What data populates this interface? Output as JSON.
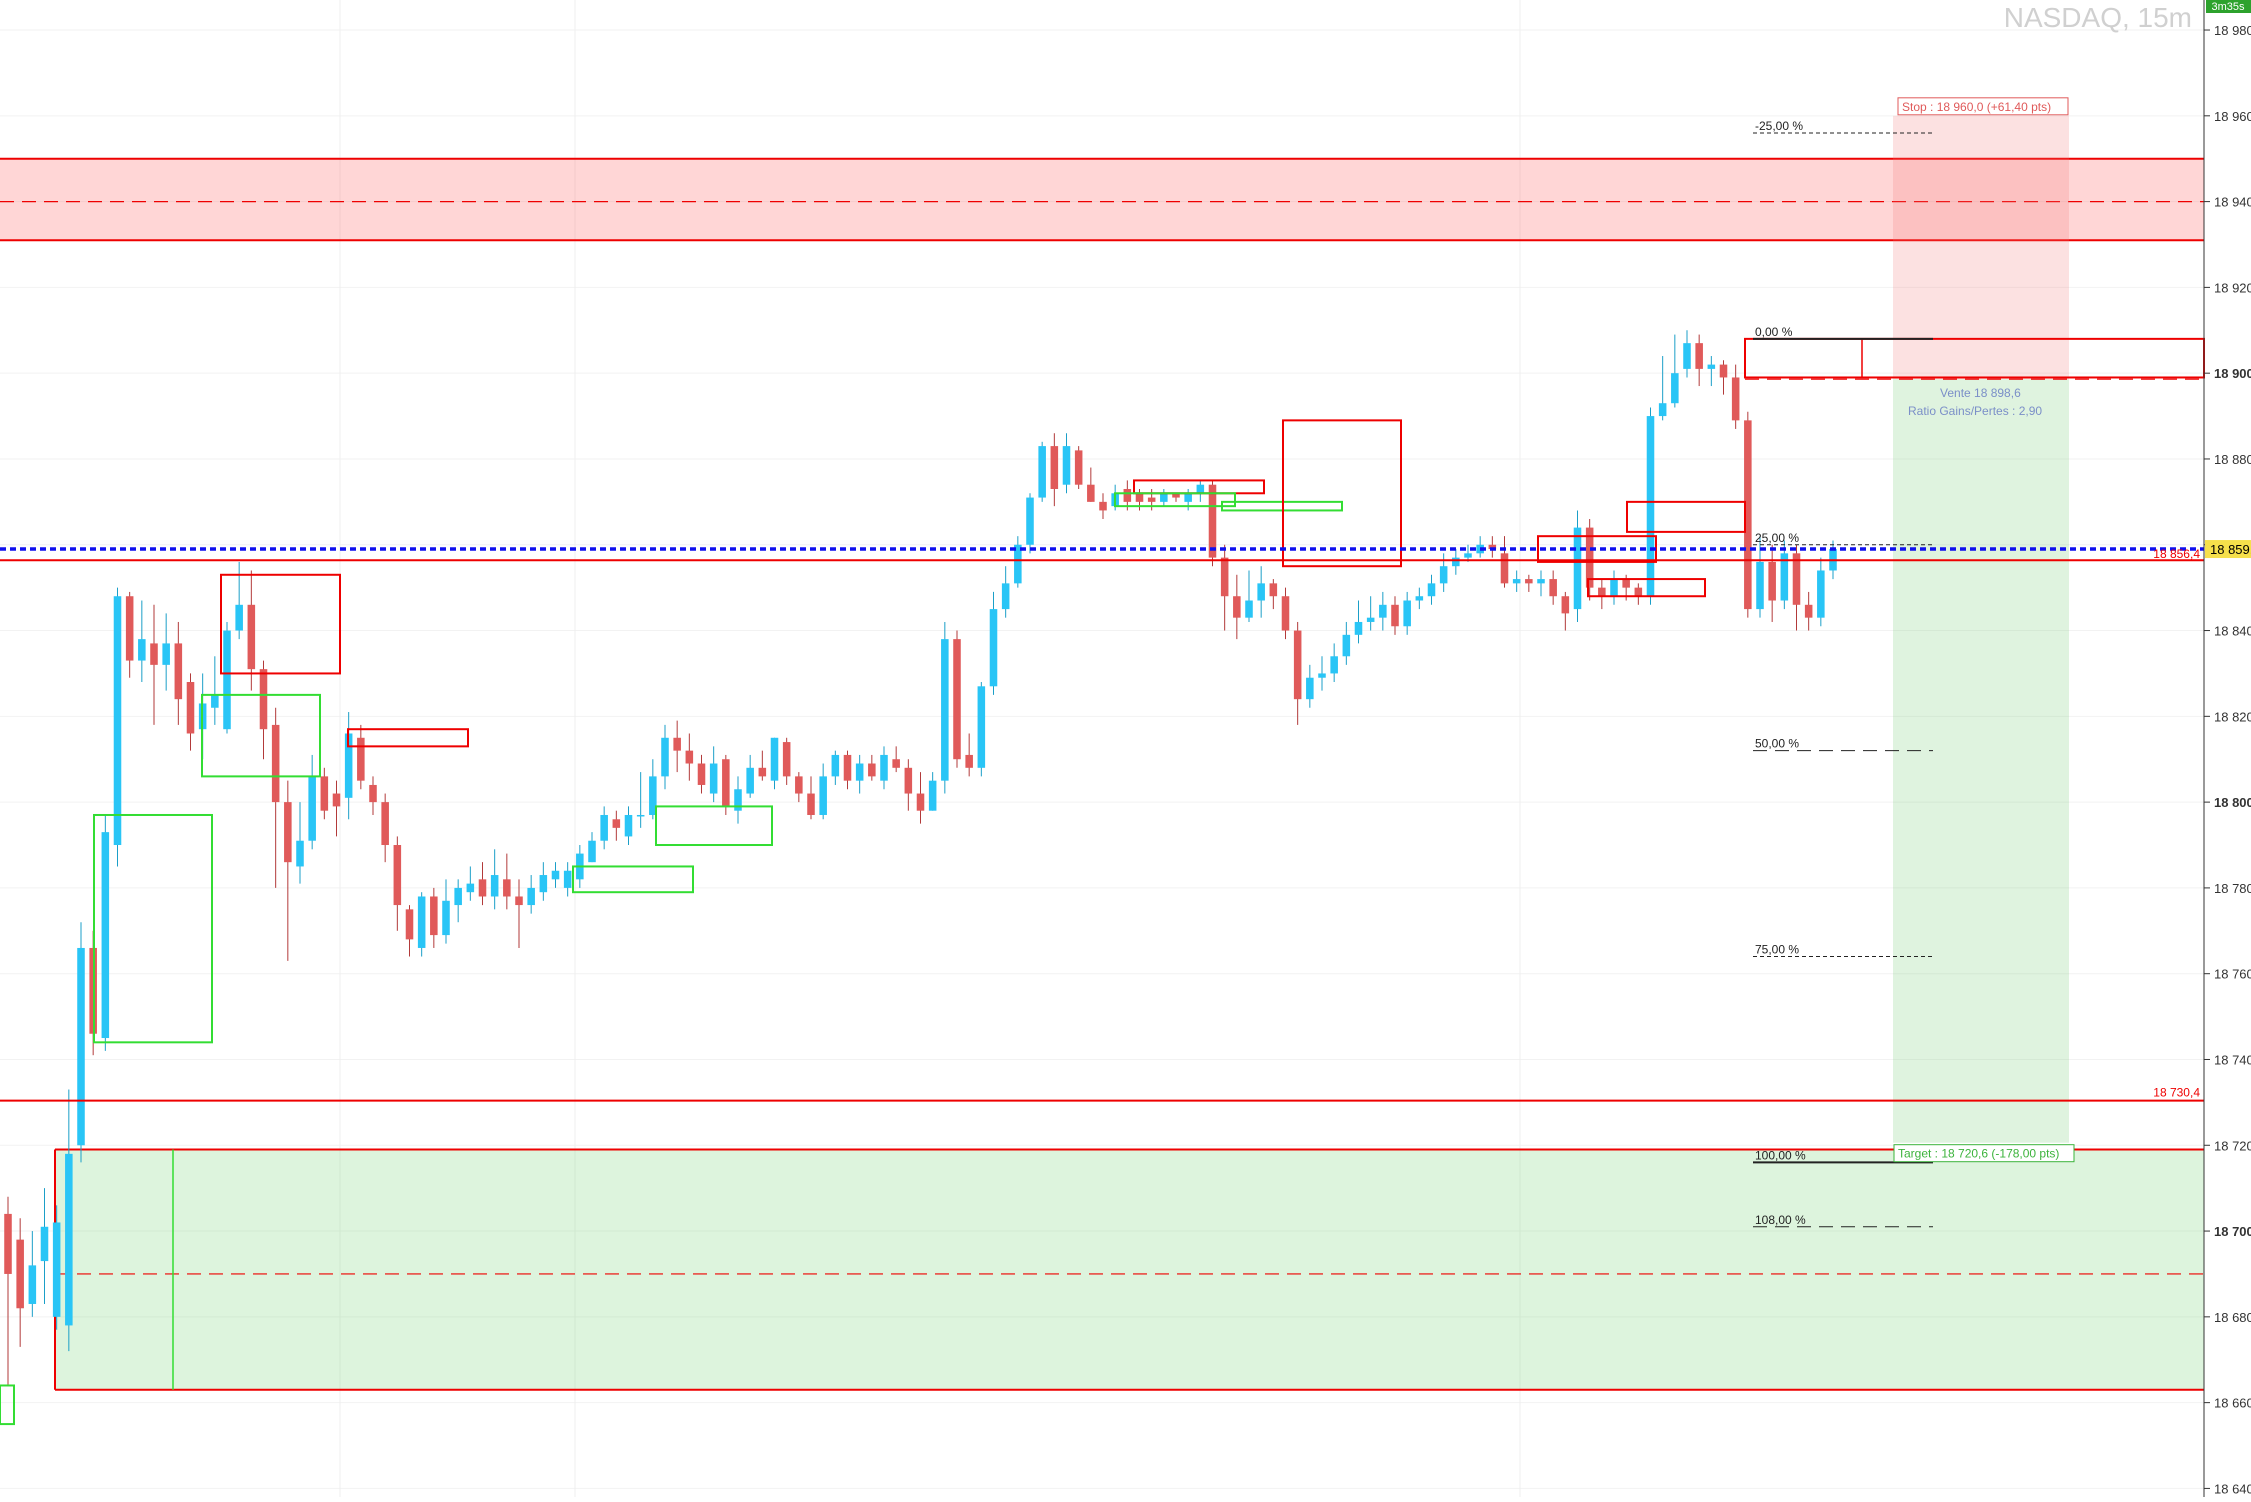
{
  "header": {
    "title": "NASDAQ, 15m",
    "timer": "3m35s"
  },
  "colors": {
    "bull": "#29c5f6",
    "bear": "#e05a5a",
    "red_zone": "#ff0000",
    "green_zone": "#33dd33",
    "price_line": "#1010ee",
    "current_price_bg": "#f6e04b",
    "timer_bg": "#2da22d"
  },
  "chart_data": {
    "type": "candlestick",
    "title": "NASDAQ, 15m",
    "ylim": [
      18638,
      18987
    ],
    "y_ticks": [
      {
        "value": 18980,
        "label": "18 980",
        "bold": false
      },
      {
        "value": 18960,
        "label": "18 960",
        "bold": false
      },
      {
        "value": 18940,
        "label": "18 940",
        "bold": false
      },
      {
        "value": 18920,
        "label": "18 920",
        "bold": false
      },
      {
        "value": 18900,
        "label": "18 900",
        "bold": true
      },
      {
        "value": 18880,
        "label": "18 880",
        "bold": false
      },
      {
        "value": 18860,
        "label": "18 860",
        "bold": false
      },
      {
        "value": 18840,
        "label": "18 840",
        "bold": false
      },
      {
        "value": 18820,
        "label": "18 820",
        "bold": false
      },
      {
        "value": 18800,
        "label": "18 800",
        "bold": true
      },
      {
        "value": 18780,
        "label": "18 780",
        "bold": false
      },
      {
        "value": 18760,
        "label": "18 760",
        "bold": false
      },
      {
        "value": 18740,
        "label": "18 740",
        "bold": false
      },
      {
        "value": 18720,
        "label": "18 720",
        "bold": false
      },
      {
        "value": 18700,
        "label": "18 700",
        "bold": true
      },
      {
        "value": 18680,
        "label": "18 680",
        "bold": false
      },
      {
        "value": 18660,
        "label": "18 660",
        "bold": false
      },
      {
        "value": 18640,
        "label": "18 640",
        "bold": false
      }
    ],
    "current_price": {
      "value": 18859,
      "label": "18 859,"
    },
    "price_labels": [
      {
        "value": 18856.4,
        "label": "18 856,4"
      },
      {
        "value": 18730.4,
        "label": "18 730,4"
      }
    ],
    "zones": [
      {
        "kind": "supply",
        "from": 18931,
        "to": 18950,
        "mid": 18940
      },
      {
        "kind": "demand",
        "from": 18663,
        "to": 18719,
        "mid": 18690
      }
    ],
    "lines": [
      {
        "value": 18856.4,
        "color": "red"
      },
      {
        "value": 18730.4,
        "color": "red"
      }
    ],
    "fibonacci": [
      {
        "value": 18956,
        "label": "-25,00 %"
      },
      {
        "value": 18908,
        "label": "0,00 %"
      },
      {
        "value": 18860,
        "label": "25,00 %"
      },
      {
        "value": 18812,
        "label": "50,00 %"
      },
      {
        "value": 18764,
        "label": "75,00 %"
      },
      {
        "value": 18716,
        "label": "100,00 %"
      },
      {
        "value": 18701,
        "label": "108,00 %"
      }
    ],
    "position": {
      "entry": 18898.6,
      "stop": 18960.0,
      "target": 18720.6,
      "entry_label": "Vente 18 898,6",
      "ratio_label": "Ratio Gains/Pertes : 2,90",
      "stop_label": "Stop : 18 960,0 (+61,40 pts)",
      "target_label": "Target : 18 720,6 (-178,00 pts)"
    },
    "candles": [
      [
        18704,
        18690,
        18708,
        18664
      ],
      [
        18698,
        18682,
        18703,
        18673
      ],
      [
        18683,
        18692,
        18700,
        18680
      ],
      [
        18693,
        18701,
        18710,
        18683
      ],
      [
        18680,
        18702,
        18706,
        18677
      ],
      [
        18678,
        18718,
        18733,
        18672
      ],
      [
        18720,
        18766,
        18772,
        18716
      ],
      [
        18766,
        18746,
        18770,
        18741
      ],
      [
        18745,
        18793,
        18797,
        18742
      ],
      [
        18790,
        18848,
        18850,
        18785
      ],
      [
        18848,
        18833,
        18849,
        18829
      ],
      [
        18833,
        18838,
        18847,
        18828
      ],
      [
        18837,
        18832,
        18846,
        18818
      ],
      [
        18832,
        18837,
        18844,
        18826
      ],
      [
        18837,
        18824,
        18842,
        18818
      ],
      [
        18828,
        18816,
        18830,
        18812
      ],
      [
        18817,
        18823,
        18830,
        18810
      ],
      [
        18822,
        18825,
        18834,
        18818
      ],
      [
        18817,
        18840,
        18842,
        18816
      ],
      [
        18840,
        18846,
        18856,
        18838
      ],
      [
        18846,
        18831,
        18854,
        18826
      ],
      [
        18831,
        18817,
        18833,
        18810
      ],
      [
        18818,
        18800,
        18822,
        18780
      ],
      [
        18800,
        18786,
        18805,
        18763
      ],
      [
        18785,
        18791,
        18800,
        18781
      ],
      [
        18791,
        18806,
        18811,
        18789
      ],
      [
        18806,
        18798,
        18808,
        18796
      ],
      [
        18802,
        18799,
        18805,
        18792
      ],
      [
        18801,
        18816,
        18821,
        18796
      ],
      [
        18815,
        18805,
        18818,
        18803
      ],
      [
        18804,
        18800,
        18806,
        18797
      ],
      [
        18800,
        18790,
        18802,
        18786
      ],
      [
        18790,
        18776,
        18792,
        18770
      ],
      [
        18775,
        18768,
        18776,
        18764
      ],
      [
        18766,
        18778,
        18779,
        18764
      ],
      [
        18778,
        18769,
        18780,
        18766
      ],
      [
        18769,
        18777,
        18782,
        18767
      ],
      [
        18776,
        18780,
        18782,
        18772
      ],
      [
        18779,
        18781,
        18785,
        18777
      ],
      [
        18782,
        18778,
        18786,
        18776
      ],
      [
        18778,
        18783,
        18789,
        18775
      ],
      [
        18782,
        18778,
        18788,
        18775
      ],
      [
        18778,
        18776,
        18782,
        18766
      ],
      [
        18776,
        18780,
        18783,
        18774
      ],
      [
        18779,
        18783,
        18786,
        18777
      ],
      [
        18782,
        18784,
        18786,
        18780
      ],
      [
        18780,
        18784,
        18786,
        18778
      ],
      [
        18782,
        18788,
        18790,
        18780
      ],
      [
        18786,
        18791,
        18793,
        18786
      ],
      [
        18791,
        18797,
        18799,
        18789
      ],
      [
        18796,
        18794,
        18798,
        18791
      ],
      [
        18792,
        18797,
        18799,
        18790
      ],
      [
        18797,
        18797,
        18807,
        18794
      ],
      [
        18797,
        18806,
        18810,
        18796
      ],
      [
        18806,
        18815,
        18818,
        18803
      ],
      [
        18815,
        18812,
        18819,
        18807
      ],
      [
        18812,
        18809,
        18816,
        18805
      ],
      [
        18809,
        18804,
        18811,
        18802
      ],
      [
        18802,
        18809,
        18813,
        18800
      ],
      [
        18810,
        18799,
        18811,
        18797
      ],
      [
        18798,
        18803,
        18806,
        18795
      ],
      [
        18802,
        18808,
        18811,
        18801
      ],
      [
        18808,
        18806,
        18812,
        18805
      ],
      [
        18805,
        18815,
        18815,
        18803
      ],
      [
        18814,
        18806,
        18815,
        18804
      ],
      [
        18806,
        18802,
        18807,
        18800
      ],
      [
        18802,
        18797,
        18806,
        18796
      ],
      [
        18797,
        18806,
        18809,
        18796
      ],
      [
        18806,
        18811,
        18812,
        18804
      ],
      [
        18811,
        18805,
        18812,
        18803
      ],
      [
        18805,
        18809,
        18811,
        18802
      ],
      [
        18809,
        18806,
        18811,
        18805
      ],
      [
        18805,
        18811,
        18813,
        18803
      ],
      [
        18810,
        18808,
        18813,
        18807
      ],
      [
        18808,
        18802,
        18810,
        18798
      ],
      [
        18802,
        18798,
        18807,
        18795
      ],
      [
        18798,
        18805,
        18807,
        18798
      ],
      [
        18805,
        18838,
        18842,
        18802
      ],
      [
        18838,
        18810,
        18840,
        18808
      ],
      [
        18811,
        18808,
        18816,
        18806
      ],
      [
        18808,
        18827,
        18828,
        18806
      ],
      [
        18827,
        18845,
        18849,
        18825
      ],
      [
        18845,
        18851,
        18855,
        18843
      ],
      [
        18851,
        18860,
        18862,
        18850
      ],
      [
        18860,
        18871,
        18872,
        18858
      ],
      [
        18871,
        18883,
        18884,
        18870
      ],
      [
        18883,
        18873,
        18886,
        18869
      ],
      [
        18874,
        18883,
        18886,
        18872
      ],
      [
        18882,
        18874,
        18883,
        18873
      ],
      [
        18874,
        18870,
        18878,
        18870
      ],
      [
        18870,
        18868,
        18872,
        18866
      ],
      [
        18869,
        18872,
        18874,
        18868
      ],
      [
        18873,
        18870,
        18875,
        18868
      ],
      [
        18872,
        18870,
        18873,
        18868
      ],
      [
        18871,
        18870,
        18873,
        18868
      ],
      [
        18870,
        18872,
        18873,
        18869
      ],
      [
        18872,
        18871,
        18872,
        18870
      ],
      [
        18870,
        18872,
        18873,
        18868
      ],
      [
        18872,
        18874,
        18875,
        18870
      ],
      [
        18874,
        18857,
        18875,
        18855
      ],
      [
        18857,
        18848,
        18860,
        18840
      ],
      [
        18848,
        18843,
        18853,
        18838
      ],
      [
        18843,
        18847,
        18854,
        18842
      ],
      [
        18847,
        18851,
        18855,
        18843
      ],
      [
        18851,
        18848,
        18852,
        18845
      ],
      [
        18848,
        18840,
        18850,
        18838
      ],
      [
        18840,
        18824,
        18842,
        18818
      ],
      [
        18824,
        18829,
        18832,
        18822
      ],
      [
        18829,
        18830,
        18834,
        18826
      ],
      [
        18830,
        18834,
        18837,
        18828
      ],
      [
        18834,
        18839,
        18842,
        18832
      ],
      [
        18839,
        18842,
        18847,
        18837
      ],
      [
        18842,
        18843,
        18848,
        18840
      ],
      [
        18843,
        18846,
        18849,
        18840
      ],
      [
        18846,
        18841,
        18848,
        18839
      ],
      [
        18841,
        18847,
        18849,
        18839
      ],
      [
        18847,
        18848,
        18850,
        18845
      ],
      [
        18848,
        18851,
        18853,
        18846
      ],
      [
        18851,
        18855,
        18858,
        18849
      ],
      [
        18855,
        18857,
        18859,
        18853
      ],
      [
        18857,
        18858,
        18860,
        18856
      ],
      [
        18858,
        18860,
        18862,
        18857
      ],
      [
        18860,
        18859,
        18862,
        18857
      ],
      [
        18858,
        18851,
        18862,
        18850
      ],
      [
        18851,
        18852,
        18854,
        18849
      ],
      [
        18852,
        18851,
        18853,
        18849
      ],
      [
        18851,
        18852,
        18854,
        18848
      ],
      [
        18852,
        18848,
        18854,
        18846
      ],
      [
        18848,
        18844,
        18849,
        18840
      ],
      [
        18845,
        18864,
        18868,
        18842
      ],
      [
        18864,
        18850,
        18866,
        18847
      ],
      [
        18850,
        18848,
        18852,
        18845
      ],
      [
        18848,
        18852,
        18854,
        18846
      ],
      [
        18852,
        18850,
        18853,
        18847
      ],
      [
        18850,
        18848,
        18851,
        18846
      ],
      [
        18848,
        18890,
        18892,
        18846
      ],
      [
        18890,
        18893,
        18904,
        18889
      ],
      [
        18893,
        18900,
        18909,
        18892
      ],
      [
        18901,
        18907,
        18910,
        18899
      ],
      [
        18907,
        18901,
        18909,
        18897
      ],
      [
        18901,
        18902,
        18904,
        18897
      ],
      [
        18902,
        18899,
        18903,
        18895
      ],
      [
        18899,
        18889,
        18902,
        18887
      ],
      [
        18889,
        18845,
        18891,
        18843
      ],
      [
        18845,
        18856,
        18862,
        18843
      ],
      [
        18856,
        18847,
        18860,
        18842
      ],
      [
        18847,
        18858,
        18861,
        18845
      ],
      [
        18858,
        18846,
        18860,
        18840
      ],
      [
        18846,
        18843,
        18849,
        18840
      ],
      [
        18843,
        18854,
        18857,
        18841
      ],
      [
        18854,
        18859,
        18861,
        18852
      ]
    ]
  }
}
